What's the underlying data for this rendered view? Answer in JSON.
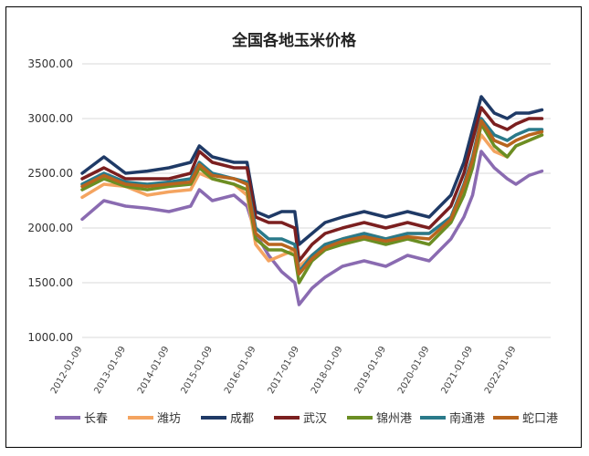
{
  "chart_data": {
    "type": "line",
    "title": "全国各地玉米价格",
    "xlabel": "",
    "ylabel": "",
    "ylim": [
      1000,
      3500
    ],
    "yticks": [
      "1000.00",
      "1500.00",
      "2000.00",
      "2500.00",
      "3000.00",
      "3500.00"
    ],
    "xticks": [
      "2012-01-09",
      "2013-01-09",
      "2014-01-09",
      "2015-01-09",
      "2016-01-09",
      "2017-01-09",
      "2018-01-09",
      "2019-01-09",
      "2020-01-09",
      "2021-01-09",
      "2022-01-09"
    ],
    "xlim": [
      2012.0,
      2022.8
    ],
    "grid": "horizontal",
    "legend": "bottom",
    "x": [
      2012.0,
      2012.5,
      2013.0,
      2013.5,
      2014.0,
      2014.5,
      2014.7,
      2015.0,
      2015.5,
      2015.8,
      2016.0,
      2016.3,
      2016.6,
      2016.9,
      2017.0,
      2017.3,
      2017.6,
      2018.0,
      2018.5,
      2019.0,
      2019.5,
      2020.0,
      2020.5,
      2020.8,
      2021.0,
      2021.2,
      2021.5,
      2021.8,
      2022.0,
      2022.3,
      2022.6
    ],
    "series": [
      {
        "name": "长春",
        "color": "#8a6bb1",
        "values": [
          2080,
          2250,
          2200,
          2180,
          2150,
          2200,
          2350,
          2250,
          2300,
          2200,
          1950,
          1750,
          1600,
          1500,
          1300,
          1450,
          1550,
          1650,
          1700,
          1650,
          1750,
          1700,
          1900,
          2100,
          2300,
          2700,
          2550,
          2450,
          2400,
          2480,
          2520
        ]
      },
      {
        "name": "潍坊",
        "color": "#f4a460",
        "values": [
          2280,
          2400,
          2380,
          2300,
          2330,
          2350,
          2500,
          2450,
          2400,
          2300,
          1850,
          1700,
          1750,
          1800,
          1650,
          1750,
          1850,
          1900,
          1950,
          1900,
          1950,
          1950,
          2100,
          2350,
          2600,
          2850,
          2700,
          2650,
          2750,
          2800,
          2850
        ]
      },
      {
        "name": "成都",
        "color": "#1f3a66",
        "values": [
          2500,
          2650,
          2500,
          2520,
          2550,
          2600,
          2750,
          2650,
          2600,
          2600,
          2150,
          2100,
          2150,
          2150,
          1850,
          1950,
          2050,
          2100,
          2150,
          2100,
          2150,
          2100,
          2300,
          2600,
          2900,
          3200,
          3050,
          3000,
          3050,
          3050,
          3080
        ]
      },
      {
        "name": "武汉",
        "color": "#7b1f1f",
        "values": [
          2450,
          2550,
          2450,
          2450,
          2450,
          2500,
          2700,
          2600,
          2550,
          2550,
          2100,
          2050,
          2050,
          2000,
          1700,
          1850,
          1950,
          2000,
          2050,
          2000,
          2050,
          2000,
          2200,
          2500,
          2800,
          3100,
          2950,
          2900,
          2950,
          3000,
          3000
        ]
      },
      {
        "name": "锦州港",
        "color": "#6b8e23",
        "values": [
          2350,
          2450,
          2380,
          2350,
          2380,
          2400,
          2550,
          2450,
          2400,
          2350,
          1900,
          1800,
          1800,
          1750,
          1500,
          1700,
          1800,
          1850,
          1900,
          1850,
          1900,
          1850,
          2050,
          2300,
          2550,
          2950,
          2750,
          2650,
          2750,
          2800,
          2850
        ]
      },
      {
        "name": "南通港",
        "color": "#2a7a8a",
        "values": [
          2400,
          2500,
          2420,
          2400,
          2420,
          2450,
          2600,
          2500,
          2450,
          2420,
          2000,
          1900,
          1900,
          1850,
          1600,
          1750,
          1850,
          1900,
          1950,
          1900,
          1950,
          1950,
          2100,
          2400,
          2650,
          3000,
          2850,
          2800,
          2850,
          2900,
          2900
        ]
      },
      {
        "name": "蛇口港",
        "color": "#b8651e",
        "values": [
          2380,
          2480,
          2400,
          2380,
          2400,
          2420,
          2580,
          2480,
          2450,
          2400,
          1950,
          1850,
          1850,
          1800,
          1580,
          1720,
          1820,
          1880,
          1920,
          1880,
          1920,
          1900,
          2080,
          2380,
          2620,
          2980,
          2800,
          2750,
          2800,
          2850,
          2880
        ]
      }
    ]
  }
}
